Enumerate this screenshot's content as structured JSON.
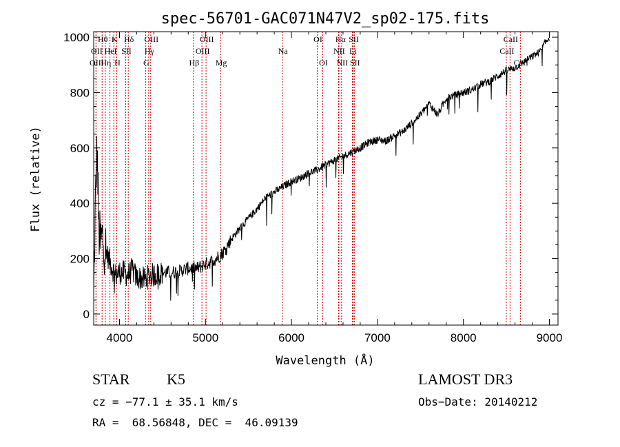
{
  "chart_data": {
    "type": "line",
    "title": "spec-56701-GAC071N47V2_sp02-175.fits",
    "xlabel": "Wavelength (Å)",
    "ylabel": "Flux (relative)",
    "xlim": [
      3700,
      9100
    ],
    "ylim": [
      -40,
      1020
    ],
    "xticks": [
      4000,
      5000,
      6000,
      7000,
      8000,
      9000
    ],
    "yticks": [
      0,
      200,
      400,
      600,
      800,
      1000
    ],
    "series": [
      {
        "name": "spectrum",
        "x": [
          3700,
          3720,
          3740,
          3760,
          3780,
          3800,
          3850,
          3900,
          3950,
          4000,
          4050,
          4100,
          4150,
          4200,
          4250,
          4300,
          4350,
          4400,
          4500,
          4600,
          4700,
          4800,
          4900,
          5000,
          5100,
          5200,
          5300,
          5400,
          5500,
          5600,
          5700,
          5800,
          5900,
          6000,
          6100,
          6200,
          6300,
          6400,
          6500,
          6600,
          6700,
          6800,
          6900,
          7000,
          7100,
          7200,
          7300,
          7400,
          7500,
          7600,
          7650,
          7700,
          7800,
          7900,
          8000,
          8100,
          8200,
          8300,
          8400,
          8500,
          8600,
          8700,
          8800,
          8900,
          8950,
          9000
        ],
        "y": [
          50,
          400,
          600,
          300,
          250,
          280,
          220,
          180,
          140,
          150,
          150,
          140,
          160,
          130,
          130,
          125,
          140,
          140,
          150,
          150,
          155,
          165,
          165,
          180,
          195,
          220,
          270,
          310,
          345,
          380,
          420,
          440,
          460,
          480,
          490,
          510,
          520,
          540,
          555,
          570,
          585,
          600,
          620,
          630,
          625,
          645,
          660,
          690,
          720,
          760,
          740,
          720,
          780,
          790,
          800,
          810,
          830,
          840,
          860,
          880,
          890,
          910,
          930,
          950,
          980,
          1000
        ]
      }
    ],
    "lines": [
      {
        "label": "Hθ",
        "x": 3798,
        "row": 1
      },
      {
        "label": "K",
        "x": 3934,
        "row": 1
      },
      {
        "label": "Hδ",
        "x": 4102,
        "row": 1
      },
      {
        "label": "OIII",
        "x": 4363,
        "row": 1
      },
      {
        "label": "OIII",
        "x": 5007,
        "row": 1
      },
      {
        "label": "OI",
        "x": 6300,
        "row": 1
      },
      {
        "label": "Hα",
        "x": 6563,
        "row": 1
      },
      {
        "label": "SII",
        "x": 6717,
        "row": 1
      },
      {
        "label": "CaII",
        "x": 8542,
        "row": 1
      },
      {
        "label": "OII",
        "x": 3727,
        "row": 2
      },
      {
        "label": "HeI",
        "x": 3889,
        "row": 2
      },
      {
        "label": "SII",
        "x": 4072,
        "row": 2
      },
      {
        "label": "Hγ",
        "x": 4340,
        "row": 2
      },
      {
        "label": "OIII",
        "x": 4959,
        "row": 2
      },
      {
        "label": "Na",
        "x": 5893,
        "row": 2
      },
      {
        "label": "NII",
        "x": 6548,
        "row": 2
      },
      {
        "label": "Li",
        "x": 6708,
        "row": 2
      },
      {
        "label": "CaII",
        "x": 8498,
        "row": 2
      },
      {
        "label": "OIII",
        "x": 3727,
        "row": 3
      },
      {
        "label": "Hη",
        "x": 3835,
        "row": 3
      },
      {
        "label": "H",
        "x": 3968,
        "row": 3
      },
      {
        "label": "G",
        "x": 4304,
        "row": 3
      },
      {
        "label": "Hβ",
        "x": 4861,
        "row": 3
      },
      {
        "label": "Mg",
        "x": 5175,
        "row": 3
      },
      {
        "label": "OI",
        "x": 6364,
        "row": 3
      },
      {
        "label": "NII",
        "x": 6583,
        "row": 3
      },
      {
        "label": "SII",
        "x": 6731,
        "row": 3
      },
      {
        "label": "CaII",
        "x": 8662,
        "row": 3
      }
    ]
  },
  "info": {
    "obj_class": "STAR",
    "subclass": "K5",
    "survey": "LAMOST DR3",
    "cz": "cz = −77.1 ± 35.1 km/s",
    "obs_date": "Obs−Date: 20140212",
    "radec": "RA =  68.56848, DEC =  46.09139"
  }
}
